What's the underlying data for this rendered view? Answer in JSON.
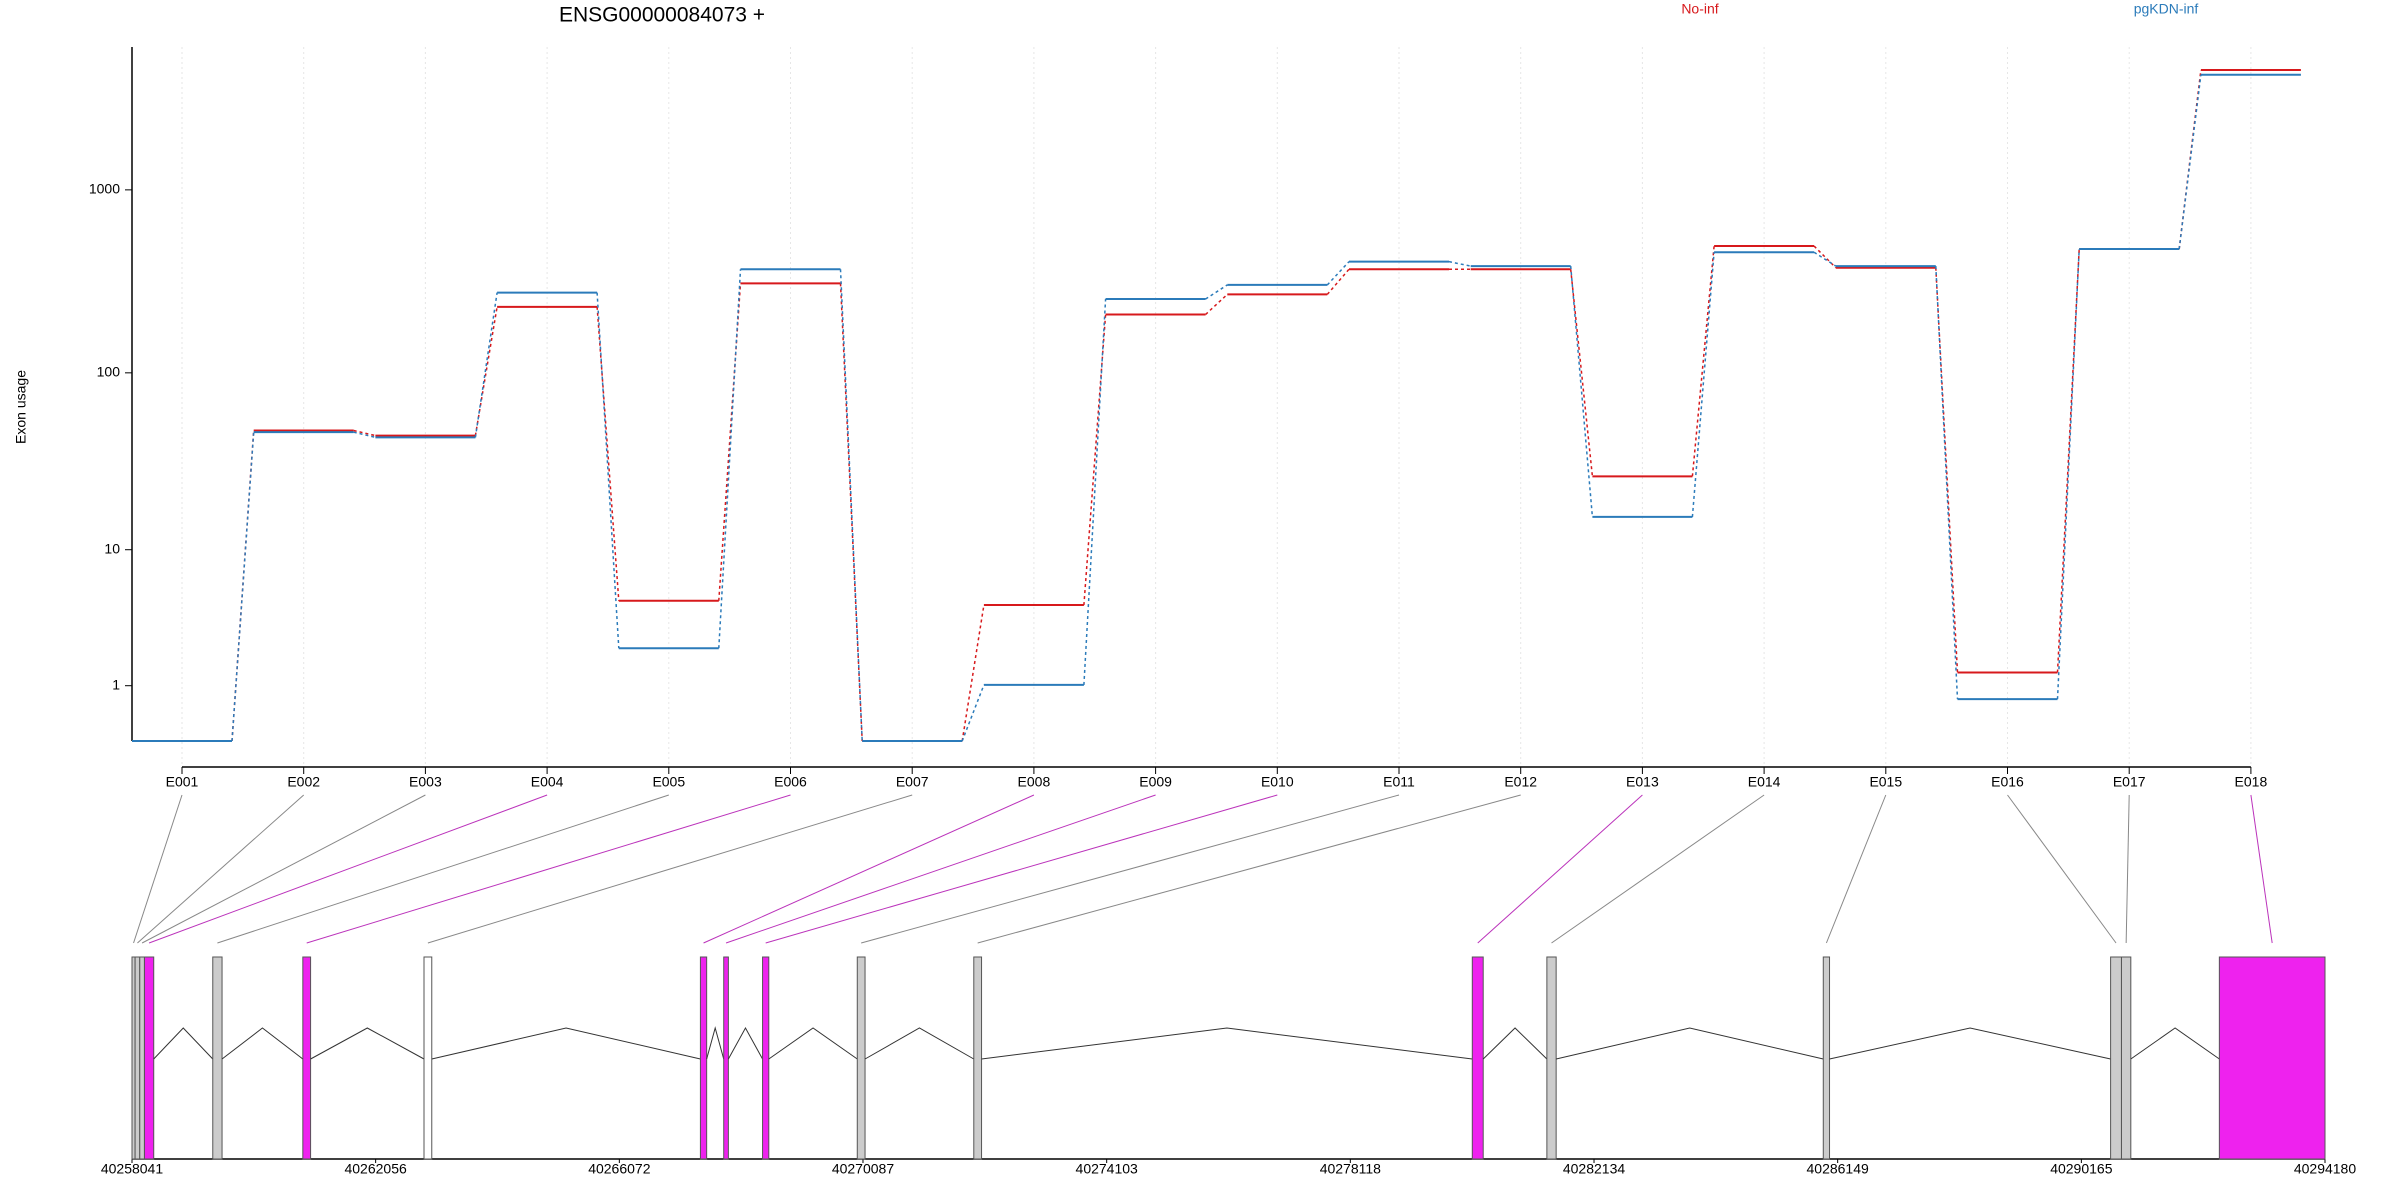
{
  "chart_data": [
    {
      "type": "step",
      "title": "ENSG00000084073 +",
      "ylabel": "Exon usage",
      "categories": [
        "E001",
        "E002",
        "E003",
        "E004",
        "E005",
        "E006",
        "E007",
        "E008",
        "E009",
        "E010",
        "E011",
        "E012",
        "E013",
        "E014",
        "E015",
        "E016",
        "E017",
        "E018"
      ],
      "series": [
        {
          "name": "No-inf",
          "color": "#d7191c",
          "values": [
            0,
            48,
            45,
            230,
            4.8,
            309,
            0,
            4.5,
            209,
            269,
            369,
            369,
            26.6,
            494,
            376,
            1.36,
            476,
            4494
          ]
        },
        {
          "name": "pgKDN-inf",
          "color": "#2b7bba",
          "values": [
            0,
            47,
            44,
            275,
            2.2,
            369,
            0,
            1.02,
            254,
            303,
            406,
            384,
            15.6,
            457,
            384,
            0.69,
            476,
            4236
          ]
        }
      ],
      "ylim": [
        0,
        6000
      ],
      "yticks": [
        1,
        10,
        100,
        1000
      ],
      "yscale": "log1p",
      "grid": true
    },
    {
      "type": "genemodel",
      "xlim": [
        40258041,
        40294180
      ],
      "xticks": [
        40258041,
        40262056,
        40266072,
        40270087,
        40274103,
        40278118,
        40282134,
        40286149,
        40290165,
        40294180
      ],
      "exon_starts": [
        40258041,
        40258092,
        40258169,
        40258246,
        40259372,
        40260856,
        40262853,
        40267408,
        40267792,
        40268432,
        40269993,
        40271913,
        40280128,
        40281357,
        40285912,
        40290647,
        40290826,
        40292439
      ],
      "exon_ends": [
        40258092,
        40258169,
        40258246,
        40258399,
        40259525,
        40260984,
        40262981,
        40267511,
        40267869,
        40268535,
        40270121,
        40272041,
        40280308,
        40281510,
        40286015,
        40290826,
        40290980,
        40294180
      ],
      "exon_colors": [
        "#cccccc",
        "#cccccc",
        "#cccccc",
        "#ee22ee",
        "#cccccc",
        "#ee22ee",
        "#ffffff",
        "#ee22ee",
        "#ee22ee",
        "#ee22ee",
        "#cccccc",
        "#cccccc",
        "#ee22ee",
        "#cccccc",
        "#cccccc",
        "#cccccc",
        "#cccccc",
        "#ee22ee"
      ],
      "link_colors": [
        "#888888",
        "#888888",
        "#888888",
        "#bb33bb",
        "#888888",
        "#bb33bb",
        "#888888",
        "#bb33bb",
        "#bb33bb",
        "#bb33bb",
        "#888888",
        "#888888",
        "#bb33bb",
        "#888888",
        "#888888",
        "#888888",
        "#888888",
        "#bb33bb"
      ]
    }
  ]
}
